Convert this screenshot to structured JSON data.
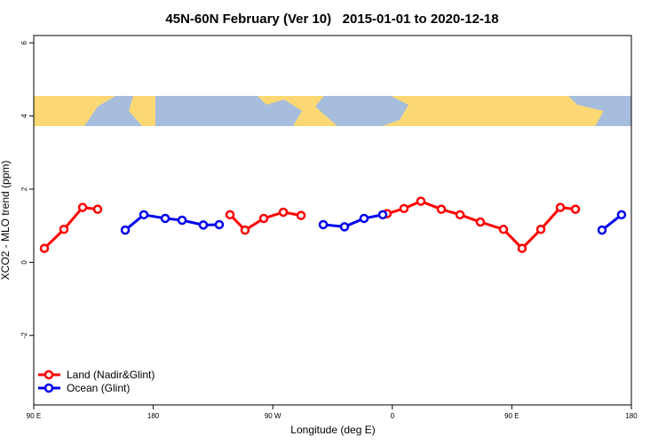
{
  "chart_data": {
    "type": "line",
    "title": "45N-60N February (Ver 10)   2015-01-01 to 2020-12-18",
    "x_label": "Longitude (deg E)",
    "y_label": "XCO2 - MLO trend (ppm)",
    "xlim": [
      90,
      540
    ],
    "xticks": [
      {
        "value": 90,
        "label": "90 E"
      },
      {
        "value": 180,
        "label": "180"
      },
      {
        "value": 270,
        "label": "90 W"
      },
      {
        "value": 360,
        "label": "0"
      },
      {
        "value": 450,
        "label": "90 E"
      },
      {
        "value": 540,
        "label": "180"
      }
    ],
    "ylim": [
      -3.9,
      6.2
    ],
    "yticks": [
      -2,
      0,
      2,
      4,
      6
    ],
    "legend": "bottom-left",
    "series": [
      {
        "name": "Land (Nadir&Glint)",
        "color": "#ff0000",
        "segments": [
          {
            "x": [
              98,
              112.7,
              126.8,
              138.1
            ],
            "values": [
              0.38,
              0.9,
              1.5,
              1.45
            ]
          },
          {
            "x": [
              237.8,
              249.1,
              263.2,
              277.9,
              291.3
            ],
            "values": [
              1.3,
              0.88,
              1.2,
              1.37,
              1.28
            ]
          },
          {
            "x": [
              356.1,
              368.8,
              381.5,
              396.9,
              411,
              426.3,
              443.7,
              457.7,
              471.8,
              486.5,
              497.9
            ],
            "values": [
              1.33,
              1.47,
              1.67,
              1.45,
              1.3,
              1.1,
              0.9,
              0.38,
              0.9,
              1.5,
              1.45
            ]
          }
        ]
      },
      {
        "name": "Ocean (Glint)",
        "color": "#0000ee",
        "segments": [
          {
            "x": [
              158.9,
              172.9,
              189,
              201.7,
              217.7,
              229.7
            ],
            "values": [
              0.88,
              1.3,
              1.2,
              1.15,
              1.02,
              1.03
            ]
          },
          {
            "x": [
              308,
              324,
              338.7,
              352.8
            ],
            "values": [
              1.03,
              0.97,
              1.2,
              1.3
            ]
          },
          {
            "x": [
              517.9,
              532.6
            ],
            "values": [
              0.88,
              1.3
            ]
          }
        ]
      }
    ]
  }
}
